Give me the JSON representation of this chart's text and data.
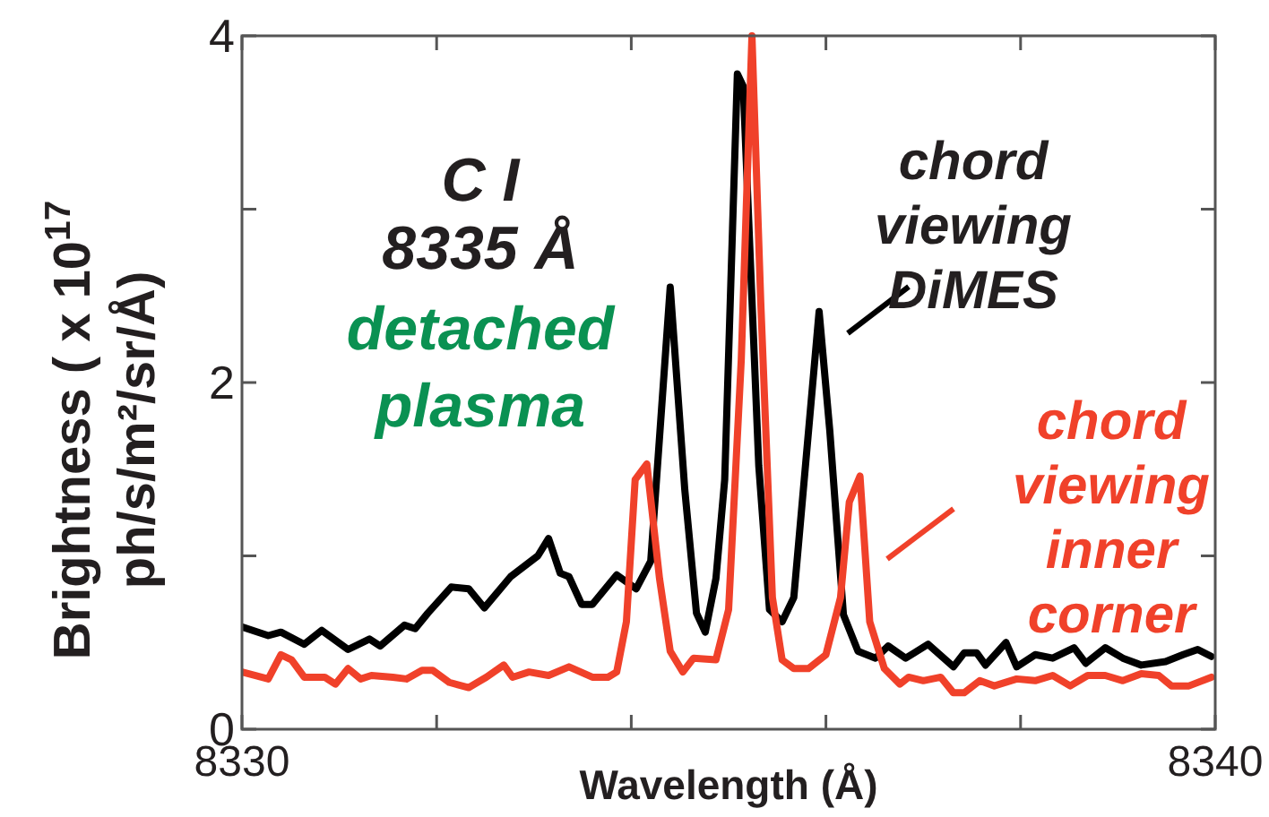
{
  "chart_data": {
    "type": "line",
    "xlabel": "Wavelength (Å)",
    "ylabel": "Brightness ( x 10$^{17}$ ph/s/m²/sr/Å)",
    "xlim": [
      8330,
      8340
    ],
    "ylim": [
      0,
      4
    ],
    "xticks": [
      8330,
      {
        "value": 8332,
        "label": null
      },
      {
        "value": 8334,
        "label": null
      },
      {
        "value": 8336,
        "label": null
      },
      {
        "value": 8338,
        "label": null
      },
      8340
    ],
    "yticks": [
      0,
      {
        "value": 1,
        "label": null
      },
      2,
      {
        "value": 3,
        "label": null
      },
      4
    ],
    "grid": false,
    "legend": "right",
    "marker": "none",
    "line_style": "solid",
    "annotations": [
      "C I",
      "8335 Å",
      "detached plasma"
    ],
    "series": [
      {
        "name": "chord viewing DiMES",
        "color": "#000000",
        "x": [
          8330.0,
          8330.27,
          8330.4,
          8330.64,
          8330.82,
          8331.09,
          8331.31,
          8331.42,
          8331.67,
          8331.78,
          8331.91,
          8332.15,
          8332.33,
          8332.49,
          8332.76,
          8333.04,
          8333.15,
          8333.27,
          8333.36,
          8333.49,
          8333.6,
          8333.85,
          8334.05,
          8334.2,
          8334.4,
          8334.55,
          8334.67,
          8334.76,
          8334.87,
          8334.96,
          8335.09,
          8335.15,
          8335.31,
          8335.42,
          8335.55,
          8335.67,
          8335.93,
          8336.04,
          8336.18,
          8336.33,
          8336.51,
          8336.64,
          8336.82,
          8337.05,
          8337.31,
          8337.42,
          8337.55,
          8337.64,
          8337.85,
          8337.96,
          8338.15,
          8338.33,
          8338.55,
          8338.67,
          8338.87,
          8339.05,
          8339.24,
          8339.49,
          8339.67,
          8339.82,
          8339.96
        ],
        "values": [
          0.59,
          0.54,
          0.56,
          0.49,
          0.57,
          0.46,
          0.52,
          0.48,
          0.6,
          0.58,
          0.67,
          0.82,
          0.81,
          0.7,
          0.88,
          1.0,
          1.1,
          0.9,
          0.88,
          0.72,
          0.72,
          0.89,
          0.81,
          0.97,
          2.55,
          1.38,
          0.67,
          0.56,
          0.87,
          1.44,
          3.78,
          3.71,
          1.52,
          0.69,
          0.62,
          0.76,
          2.41,
          1.72,
          0.66,
          0.45,
          0.41,
          0.48,
          0.41,
          0.49,
          0.36,
          0.44,
          0.44,
          0.37,
          0.5,
          0.36,
          0.43,
          0.41,
          0.47,
          0.38,
          0.47,
          0.41,
          0.37,
          0.39,
          0.43,
          0.46,
          0.42
        ]
      },
      {
        "name": "chord viewing inner corner",
        "color": "#f0412a",
        "x": [
          8330.0,
          8330.27,
          8330.4,
          8330.51,
          8330.64,
          8330.85,
          8330.96,
          8331.09,
          8331.22,
          8331.33,
          8331.55,
          8331.69,
          8331.85,
          8331.96,
          8332.13,
          8332.33,
          8332.51,
          8332.69,
          8332.78,
          8332.95,
          8333.15,
          8333.36,
          8333.6,
          8333.76,
          8333.85,
          8333.95,
          8334.04,
          8334.16,
          8334.29,
          8334.4,
          8334.53,
          8334.64,
          8334.87,
          8335.0,
          8335.13,
          8335.24,
          8335.33,
          8335.45,
          8335.55,
          8335.67,
          8335.82,
          8336.0,
          8336.15,
          8336.24,
          8336.35,
          8336.45,
          8336.6,
          8336.76,
          8336.85,
          8337.0,
          8337.18,
          8337.31,
          8337.42,
          8337.58,
          8337.73,
          8337.96,
          8338.15,
          8338.33,
          8338.51,
          8338.69,
          8338.87,
          8339.05,
          8339.24,
          8339.42,
          8339.55,
          8339.73,
          8339.96
        ],
        "values": [
          0.33,
          0.29,
          0.43,
          0.4,
          0.3,
          0.3,
          0.26,
          0.35,
          0.29,
          0.31,
          0.3,
          0.29,
          0.34,
          0.34,
          0.27,
          0.24,
          0.3,
          0.37,
          0.3,
          0.33,
          0.31,
          0.36,
          0.3,
          0.3,
          0.33,
          0.62,
          1.44,
          1.53,
          0.87,
          0.45,
          0.33,
          0.41,
          0.4,
          0.69,
          2.13,
          4.0,
          2.47,
          0.76,
          0.4,
          0.35,
          0.35,
          0.43,
          0.76,
          1.31,
          1.46,
          0.62,
          0.35,
          0.26,
          0.3,
          0.28,
          0.3,
          0.21,
          0.21,
          0.28,
          0.25,
          0.29,
          0.28,
          0.31,
          0.25,
          0.31,
          0.31,
          0.28,
          0.32,
          0.31,
          0.25,
          0.25,
          0.3
        ]
      }
    ]
  }
}
